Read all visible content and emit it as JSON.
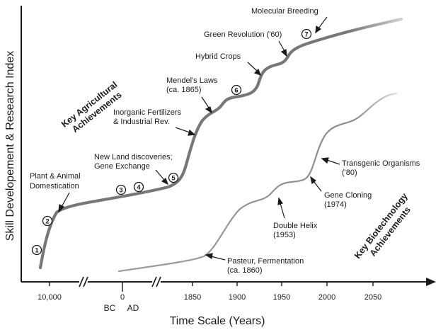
{
  "y_axis_label": "Skill Developement & Research Index",
  "x_axis_label": "Time Scale (Years)",
  "x_ticks": [
    "10,000",
    "0",
    "1850",
    "1900",
    "1950",
    "2000",
    "2050"
  ],
  "era_labels": {
    "bc": "BC",
    "ad": "AD"
  },
  "section_titles": {
    "agri_line1": "Key Agricultural",
    "agri_line2": "Achievements",
    "bio_line1": "Key Biotechnology",
    "bio_line2": "Achievements"
  },
  "numbered_markers": [
    "1",
    "2",
    "3",
    "4",
    "5",
    "6",
    "7"
  ],
  "annotations": {
    "plant_1": "Plant & Animal",
    "plant_2": "Domestication",
    "newland_1": "New Land discoveries;",
    "newland_2": "Gene Exchange",
    "inorg_1": "Inorganic Fertilizers",
    "inorg_2": "& Industrial Rev.",
    "mendel_1": "Mendel's Laws",
    "mendel_2": "(ca. 1865)",
    "hybrid": "Hybrid Crops",
    "green": "Green Revolution ('60)",
    "molecular": "Molecular Breeding",
    "pasteur_1": "Pasteur, Fermentation",
    "pasteur_2": "(ca. 1860)",
    "dna_1": "Double Helix",
    "dna_2": "(1953)",
    "cloning_1": "Gene Cloning",
    "cloning_2": "(1974)",
    "transgenic_1": "Transgenic Organisms",
    "transgenic_2": "('80)"
  },
  "colors": {
    "agri_curve": "#7a7a7a",
    "bio_curve": "#9a9a9a",
    "axis": "#1a1a1a"
  }
}
